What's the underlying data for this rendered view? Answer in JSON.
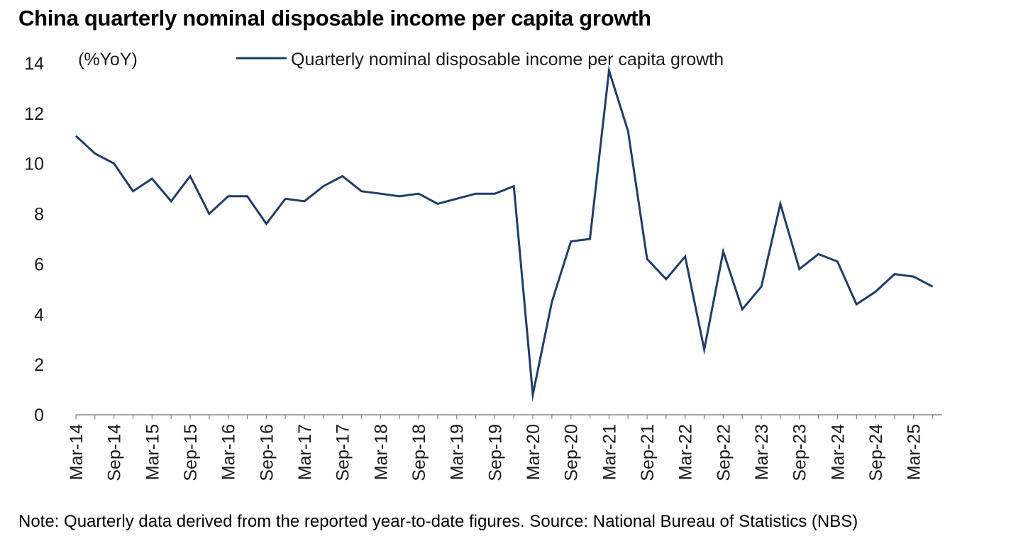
{
  "title": "China quarterly nominal disposable income per capita growth",
  "note": "Note: Quarterly data derived from the reported year-to-date figures. Source: National Bureau of Statistics (NBS)",
  "chart_data": {
    "type": "line",
    "title": "China quarterly nominal disposable income per capita growth",
    "ylabel": "(%YoY)",
    "xlabel": "",
    "ylim": [
      0,
      14
    ],
    "yticks": [
      0,
      2,
      4,
      6,
      8,
      10,
      12,
      14
    ],
    "grid": false,
    "legend_position": "top-center",
    "line_color": "#1f3d6b",
    "x": [
      "Mar-14",
      "Jun-14",
      "Sep-14",
      "Dec-14",
      "Mar-15",
      "Jun-15",
      "Sep-15",
      "Dec-15",
      "Mar-16",
      "Jun-16",
      "Sep-16",
      "Dec-16",
      "Mar-17",
      "Jun-17",
      "Sep-17",
      "Dec-17",
      "Mar-18",
      "Jun-18",
      "Sep-18",
      "Dec-18",
      "Mar-19",
      "Jun-19",
      "Sep-19",
      "Dec-19",
      "Mar-20",
      "Jun-20",
      "Sep-20",
      "Dec-20",
      "Mar-21",
      "Jun-21",
      "Sep-21",
      "Dec-21",
      "Mar-22",
      "Jun-22",
      "Sep-22",
      "Dec-22",
      "Mar-23",
      "Jun-23",
      "Sep-23",
      "Dec-23",
      "Mar-24",
      "Jun-24",
      "Sep-24",
      "Dec-24",
      "Mar-25",
      "Jun-25"
    ],
    "x_tick_labels": [
      "Mar-14",
      "Sep-14",
      "Mar-15",
      "Sep-15",
      "Mar-16",
      "Sep-16",
      "Mar-17",
      "Sep-17",
      "Mar-18",
      "Sep-18",
      "Mar-19",
      "Sep-19",
      "Mar-20",
      "Sep-20",
      "Mar-21",
      "Sep-21",
      "Mar-22",
      "Sep-22",
      "Mar-23",
      "Sep-23",
      "Mar-24",
      "Sep-24",
      "Mar-25"
    ],
    "series": [
      {
        "name": "Quarterly nominal disposable income per capita growth",
        "values": [
          11.1,
          10.4,
          10.0,
          8.9,
          9.4,
          8.5,
          9.5,
          8.0,
          8.7,
          8.7,
          7.6,
          8.6,
          8.5,
          9.1,
          9.5,
          8.9,
          8.8,
          8.7,
          8.8,
          8.4,
          8.6,
          8.8,
          8.8,
          9.1,
          0.8,
          4.5,
          6.9,
          7.0,
          13.7,
          11.3,
          6.2,
          5.4,
          6.3,
          2.6,
          6.5,
          4.2,
          5.1,
          8.4,
          5.8,
          6.4,
          6.1,
          4.4,
          4.9,
          5.6,
          5.5,
          5.1
        ]
      }
    ]
  }
}
